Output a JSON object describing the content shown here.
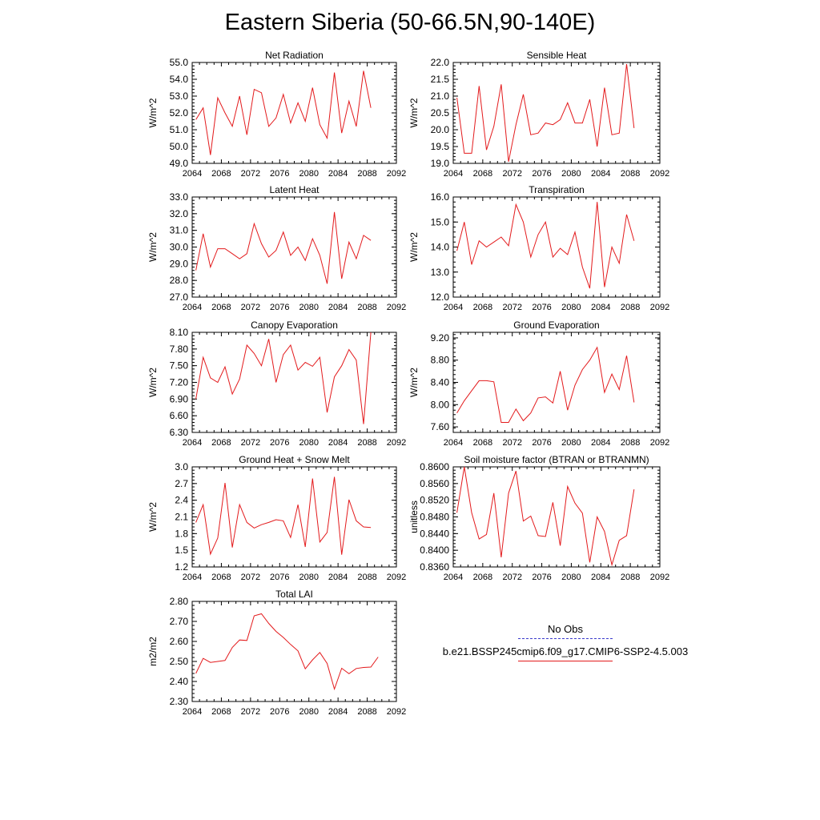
{
  "title": "Eastern Siberia (50-66.5N,90-140E)",
  "legend": {
    "obs_label": "No Obs",
    "obs_color": "#3a3acb",
    "model_label": "b.e21.BSSP245cmip6.f09_g17.CMIP6-SSP2-4.5.003",
    "model_color": "#e31a1c"
  },
  "chart_data": [
    {
      "type": "line",
      "title": "Net Radiation",
      "ylabel": "W/m^2",
      "xlim": [
        2064,
        2092
      ],
      "xticks": [
        "2064",
        "2068",
        "2072",
        "2076",
        "2080",
        "2084",
        "2088",
        "2092"
      ],
      "ylim": [
        49.0,
        55.0
      ],
      "yticks": [
        "49.0",
        "50.0",
        "51.0",
        "52.0",
        "53.0",
        "54.0",
        "55.0"
      ],
      "x": [
        2064,
        2065,
        2066,
        2067,
        2068,
        2069,
        2070,
        2071,
        2072,
        2073,
        2074,
        2075,
        2076,
        2077,
        2078,
        2079,
        2080,
        2081,
        2082,
        2083,
        2084,
        2085,
        2086,
        2087,
        2088,
        2089
      ],
      "values": [
        51.6,
        52.3,
        49.5,
        52.9,
        52.0,
        51.2,
        53.0,
        50.7,
        53.4,
        53.2,
        51.2,
        51.7,
        53.1,
        51.4,
        52.6,
        51.5,
        53.5,
        51.3,
        50.5,
        54.4,
        50.8,
        52.7,
        51.2,
        54.5,
        52.3,
        null
      ]
    },
    {
      "type": "line",
      "title": "Sensible Heat",
      "ylabel": "W/m^2",
      "xlim": [
        2064,
        2092
      ],
      "xticks": [
        "2064",
        "2068",
        "2072",
        "2076",
        "2080",
        "2084",
        "2088",
        "2092"
      ],
      "ylim": [
        19.0,
        22.0
      ],
      "yticks": [
        "19.0",
        "19.5",
        "20.0",
        "20.5",
        "21.0",
        "21.5",
        "22.0"
      ],
      "x": [
        2064,
        2065,
        2066,
        2067,
        2068,
        2069,
        2070,
        2071,
        2072,
        2073,
        2074,
        2075,
        2076,
        2077,
        2078,
        2079,
        2080,
        2081,
        2082,
        2083,
        2084,
        2085,
        2086,
        2087,
        2088,
        2089
      ],
      "values": [
        20.95,
        19.3,
        19.3,
        21.3,
        19.4,
        20.1,
        21.35,
        19.05,
        20.15,
        21.05,
        19.85,
        19.9,
        20.2,
        20.15,
        20.3,
        20.8,
        20.2,
        20.2,
        20.9,
        19.5,
        21.25,
        19.85,
        19.9,
        21.95,
        20.05,
        null
      ]
    },
    {
      "type": "line",
      "title": "Latent Heat",
      "ylabel": "W/m^2",
      "xlim": [
        2064,
        2092
      ],
      "xticks": [
        "2064",
        "2068",
        "2072",
        "2076",
        "2080",
        "2084",
        "2088",
        "2092"
      ],
      "ylim": [
        27.0,
        33.0
      ],
      "yticks": [
        "27.0",
        "28.0",
        "29.0",
        "30.0",
        "31.0",
        "32.0",
        "33.0"
      ],
      "x": [
        2064,
        2065,
        2066,
        2067,
        2068,
        2069,
        2070,
        2071,
        2072,
        2073,
        2074,
        2075,
        2076,
        2077,
        2078,
        2079,
        2080,
        2081,
        2082,
        2083,
        2084,
        2085,
        2086,
        2087,
        2088,
        2089
      ],
      "values": [
        28.6,
        30.8,
        28.8,
        29.9,
        29.9,
        29.6,
        29.3,
        29.6,
        31.4,
        30.2,
        29.4,
        29.8,
        30.9,
        29.5,
        30.0,
        29.2,
        30.5,
        29.5,
        27.8,
        32.1,
        28.1,
        30.3,
        29.3,
        30.7,
        30.4,
        null
      ]
    },
    {
      "type": "line",
      "title": "Transpiration",
      "ylabel": "W/m^2",
      "xlim": [
        2064,
        2092
      ],
      "xticks": [
        "2064",
        "2068",
        "2072",
        "2076",
        "2080",
        "2084",
        "2088",
        "2092"
      ],
      "ylim": [
        12.0,
        16.0
      ],
      "yticks": [
        "12.0",
        "13.0",
        "14.0",
        "15.0",
        "16.0"
      ],
      "x": [
        2064,
        2065,
        2066,
        2067,
        2068,
        2069,
        2070,
        2071,
        2072,
        2073,
        2074,
        2075,
        2076,
        2077,
        2078,
        2079,
        2080,
        2081,
        2082,
        2083,
        2084,
        2085,
        2086,
        2087,
        2088,
        2089
      ],
      "values": [
        13.85,
        15.0,
        13.3,
        14.25,
        14.0,
        14.2,
        14.4,
        14.05,
        15.7,
        15.0,
        13.6,
        14.5,
        15.0,
        13.6,
        13.95,
        13.7,
        14.6,
        13.2,
        12.35,
        15.8,
        12.4,
        14.0,
        13.35,
        15.3,
        14.25,
        null
      ]
    },
    {
      "type": "line",
      "title": "Canopy Evaporation",
      "ylabel": "W/m^2",
      "xlim": [
        2064,
        2092
      ],
      "xticks": [
        "2064",
        "2068",
        "2072",
        "2076",
        "2080",
        "2084",
        "2088",
        "2092"
      ],
      "ylim": [
        6.3,
        8.1
      ],
      "yticks": [
        "6.30",
        "6.60",
        "6.90",
        "7.20",
        "7.50",
        "7.80",
        "8.10"
      ],
      "x": [
        2064,
        2065,
        2066,
        2067,
        2068,
        2069,
        2070,
        2071,
        2072,
        2073,
        2074,
        2075,
        2076,
        2077,
        2078,
        2079,
        2080,
        2081,
        2082,
        2083,
        2084,
        2085,
        2086,
        2087,
        2088,
        2089
      ],
      "values": [
        6.9,
        7.65,
        7.28,
        7.2,
        7.48,
        6.99,
        7.26,
        7.87,
        7.72,
        7.5,
        7.98,
        7.2,
        7.7,
        7.87,
        7.42,
        7.56,
        7.49,
        7.65,
        6.66,
        7.3,
        7.5,
        7.79,
        7.6,
        6.45,
        8.1,
        null
      ]
    },
    {
      "type": "line",
      "title": "Ground Evaporation",
      "ylabel": "W/m^2",
      "xlim": [
        2064,
        2092
      ],
      "xticks": [
        "2064",
        "2068",
        "2072",
        "2076",
        "2080",
        "2084",
        "2088",
        "2092"
      ],
      "ylim": [
        7.5,
        9.3
      ],
      "yticks": [
        "7.60",
        "8.00",
        "8.40",
        "8.80",
        "9.20"
      ],
      "x": [
        2064,
        2065,
        2066,
        2067,
        2068,
        2069,
        2070,
        2071,
        2072,
        2073,
        2074,
        2075,
        2076,
        2077,
        2078,
        2079,
        2080,
        2081,
        2082,
        2083,
        2084,
        2085,
        2086,
        2087,
        2088,
        2089
      ],
      "values": [
        7.85,
        8.07,
        8.25,
        8.43,
        8.43,
        8.41,
        7.68,
        7.68,
        7.92,
        7.71,
        7.85,
        8.12,
        8.14,
        8.03,
        8.6,
        7.9,
        8.35,
        8.63,
        8.8,
        9.03,
        8.22,
        8.55,
        8.27,
        8.88,
        8.04,
        null
      ]
    },
    {
      "type": "line",
      "title": "Ground Heat + Snow Melt",
      "ylabel": "W/m^2",
      "xlim": [
        2064,
        2092
      ],
      "xticks": [
        "2064",
        "2068",
        "2072",
        "2076",
        "2080",
        "2084",
        "2088",
        "2092"
      ],
      "ylim": [
        1.2,
        3.0
      ],
      "yticks": [
        "1.2",
        "1.5",
        "1.8",
        "2.1",
        "2.4",
        "2.7",
        "3.0"
      ],
      "x": [
        2064,
        2065,
        2066,
        2067,
        2068,
        2069,
        2070,
        2071,
        2072,
        2073,
        2074,
        2075,
        2076,
        2077,
        2078,
        2079,
        2080,
        2081,
        2082,
        2083,
        2084,
        2085,
        2086,
        2087,
        2088,
        2089
      ],
      "values": [
        2.0,
        2.32,
        1.43,
        1.72,
        2.71,
        1.55,
        2.32,
        2.0,
        1.9,
        1.96,
        2.0,
        2.05,
        2.03,
        1.73,
        2.32,
        1.56,
        2.79,
        1.65,
        1.82,
        2.82,
        1.42,
        2.41,
        2.03,
        1.92,
        1.91,
        null
      ]
    },
    {
      "type": "line",
      "title": "Soil moisture factor (BTRAN or BTRANMN)",
      "ylabel": "unitless",
      "xlim": [
        2064,
        2092
      ],
      "xticks": [
        "2064",
        "2068",
        "2072",
        "2076",
        "2080",
        "2084",
        "2088",
        "2092"
      ],
      "ylim": [
        0.836,
        0.86
      ],
      "yticks": [
        "0.8360",
        "0.8400",
        "0.8440",
        "0.8480",
        "0.8520",
        "0.8560",
        "0.8600"
      ],
      "x": [
        2064,
        2065,
        2066,
        2067,
        2068,
        2069,
        2070,
        2071,
        2072,
        2073,
        2074,
        2075,
        2076,
        2077,
        2078,
        2079,
        2080,
        2081,
        2082,
        2083,
        2084,
        2085,
        2086,
        2087,
        2088,
        2089
      ],
      "values": [
        0.849,
        0.86,
        0.849,
        0.8427,
        0.8438,
        0.8537,
        0.8383,
        0.8537,
        0.859,
        0.847,
        0.8482,
        0.8435,
        0.8433,
        0.8515,
        0.8411,
        0.8553,
        0.8513,
        0.8489,
        0.8371,
        0.848,
        0.8445,
        0.8365,
        0.8424,
        0.8435,
        0.8546,
        null
      ]
    },
    {
      "type": "line",
      "title": "Total LAI",
      "ylabel": "m2/m2",
      "xlim": [
        2064,
        2092
      ],
      "xticks": [
        "2064",
        "2068",
        "2072",
        "2076",
        "2080",
        "2084",
        "2088",
        "2092"
      ],
      "ylim": [
        2.3,
        2.8
      ],
      "yticks": [
        "2.30",
        "2.40",
        "2.50",
        "2.60",
        "2.70",
        "2.80"
      ],
      "x": [
        2064,
        2065,
        2066,
        2067,
        2068,
        2069,
        2070,
        2071,
        2072,
        2073,
        2074,
        2075,
        2076,
        2077,
        2078,
        2079,
        2080,
        2081,
        2082,
        2083,
        2084,
        2085,
        2086,
        2087,
        2088,
        2089
      ],
      "values": [
        2.44,
        2.515,
        2.495,
        2.5,
        2.505,
        2.57,
        2.607,
        2.605,
        2.728,
        2.738,
        2.69,
        2.65,
        2.62,
        2.585,
        2.553,
        2.463,
        2.508,
        2.545,
        2.49,
        2.362,
        2.466,
        2.439,
        2.465,
        2.47,
        2.472,
        2.522
      ]
    }
  ]
}
